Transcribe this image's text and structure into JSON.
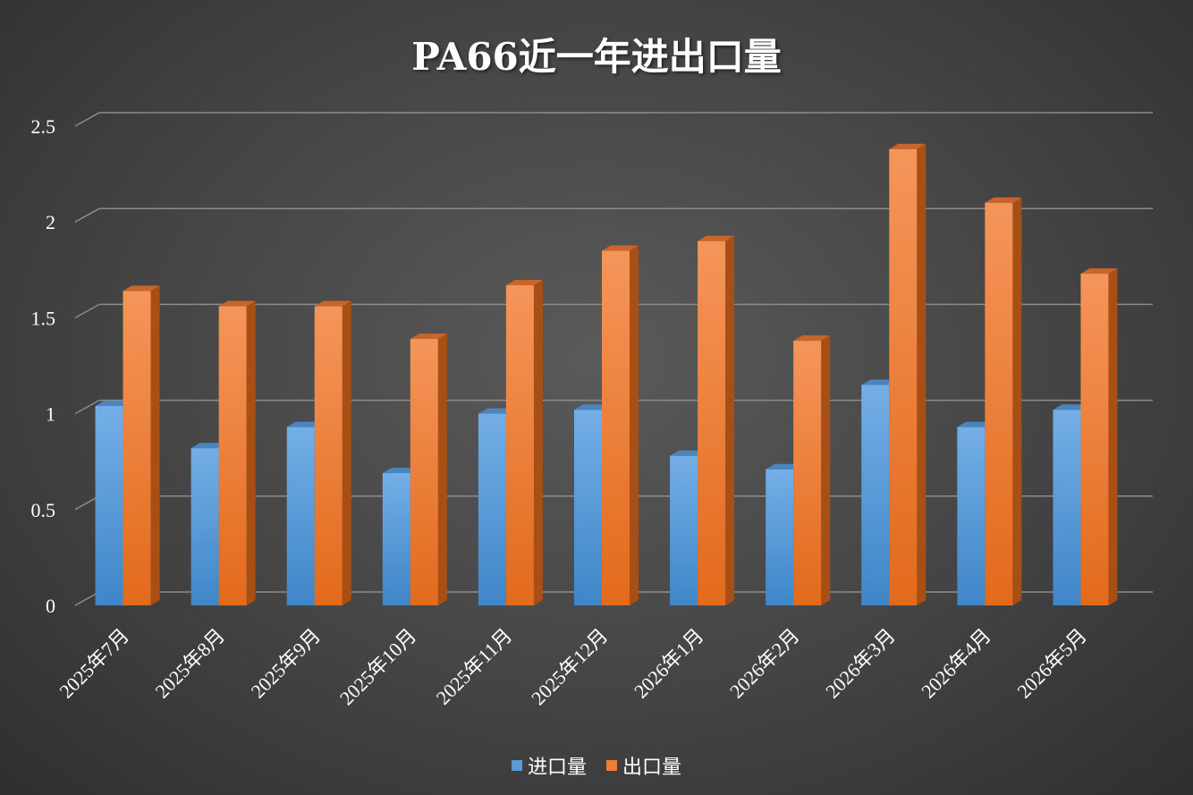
{
  "colors": {
    "import": "#5b9bd5",
    "export": "#ed7d31",
    "grid": "#8c8c8c",
    "text": "#ffffff"
  },
  "chart_data": {
    "type": "bar",
    "title": "PA66近一年进出口量",
    "categories": [
      "2025年7月",
      "2025年8月",
      "2025年9月",
      "2025年10月",
      "2025年11月",
      "2025年12月",
      "2026年1月",
      "2026年2月",
      "2026年3月",
      "2026年4月",
      "2026年5月"
    ],
    "series": [
      {
        "name": "进口量",
        "values": [
          1.04,
          0.82,
          0.93,
          0.69,
          1.0,
          1.02,
          0.78,
          0.71,
          1.15,
          0.93,
          1.02
        ]
      },
      {
        "name": "出口量",
        "values": [
          1.64,
          1.56,
          1.56,
          1.39,
          1.67,
          1.85,
          1.9,
          1.38,
          2.38,
          2.1,
          1.73
        ]
      }
    ],
    "yticks": [
      "0",
      "0.5",
      "1",
      "1.5",
      "2",
      "2.5"
    ],
    "ylim": [
      0,
      2.5
    ],
    "grid": true,
    "legend_position": "bottom"
  }
}
